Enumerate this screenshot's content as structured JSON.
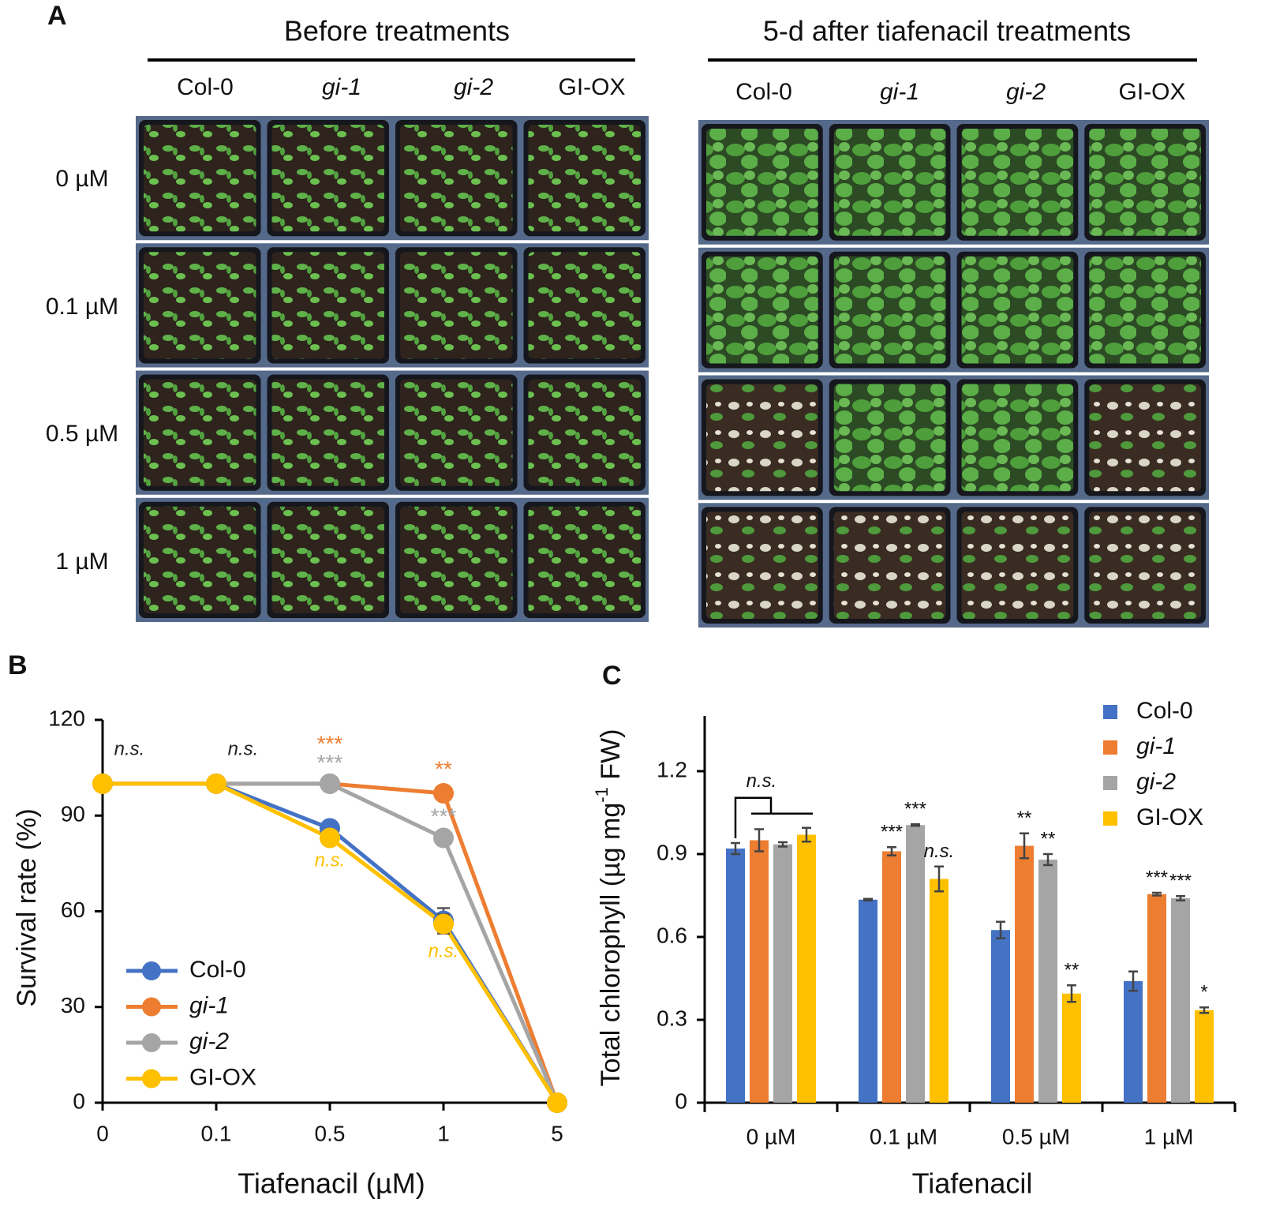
{
  "panel_a": {
    "label": "A",
    "rows": [
      "0 µM",
      "0.1 µM",
      "0.5 µM",
      "1 µM"
    ],
    "groups": [
      {
        "title": "Before treatments",
        "columns": [
          "Col-0",
          "gi-1",
          "gi-2",
          "GI-OX"
        ]
      },
      {
        "title": "5-d after tiafenacil treatments",
        "columns": [
          "Col-0",
          "gi-1",
          "gi-2",
          "GI-OX"
        ]
      }
    ]
  },
  "chart_data": [
    {
      "type": "line",
      "panel_label": "B",
      "xlabel": "Tiafenacil (µM)",
      "ylabel": "Survival rate (%)",
      "categories": [
        "0",
        "0.1",
        "0.5",
        "1",
        "5"
      ],
      "ylim": [
        0,
        120
      ],
      "yticks": [
        0,
        30,
        60,
        90,
        120
      ],
      "legend": "lower-left",
      "series": [
        {
          "name": "Col-0",
          "color": "#4472c4",
          "values": [
            100,
            100,
            86,
            57,
            0
          ],
          "errors": [
            null,
            null,
            null,
            4,
            null
          ]
        },
        {
          "name": "gi-1",
          "color": "#ed7d31",
          "values": [
            100,
            100,
            100,
            97,
            0
          ]
        },
        {
          "name": "gi-2",
          "color": "#a5a5a5",
          "values": [
            100,
            100,
            100,
            83,
            0
          ]
        },
        {
          "name": "GI-OX",
          "color": "#ffc000",
          "values": [
            100,
            100,
            83,
            56,
            0
          ],
          "errors": [
            null,
            null,
            null,
            3,
            null
          ]
        }
      ],
      "annotations": [
        {
          "text": "n.s.",
          "x": "0",
          "color": "#222222"
        },
        {
          "text": "n.s.",
          "x": "0.1",
          "color": "#222222"
        },
        {
          "text": "***",
          "x": "0.5",
          "color": "#ed7d31"
        },
        {
          "text": "***",
          "x": "0.5",
          "color": "#a5a5a5"
        },
        {
          "text": "n.s.",
          "x": "0.5",
          "color": "#ffc000"
        },
        {
          "text": "**",
          "x": "1",
          "color": "#ed7d31"
        },
        {
          "text": "***",
          "x": "1",
          "color": "#a5a5a5"
        },
        {
          "text": "n.s.",
          "x": "1",
          "color": "#ffc000"
        }
      ]
    },
    {
      "type": "bar",
      "panel_label": "C",
      "xlabel": "Tiafenacil",
      "ylabel": [
        "Total chlorophyll (µg mg",
        "-1",
        " FW)"
      ],
      "categories": [
        "0 µM",
        "0.1 µM",
        "0.5 µM",
        "1 µM"
      ],
      "ylim": [
        0,
        1.4
      ],
      "yticks": [
        0,
        0.3,
        0.6,
        0.9,
        1.2
      ],
      "legend": "upper-right",
      "series": [
        {
          "name": "Col-0",
          "color": "#4472c4",
          "values": [
            0.92,
            0.735,
            0.625,
            0.44
          ],
          "errors": [
            0.02,
            0.003,
            0.03,
            0.035
          ]
        },
        {
          "name": "gi-1",
          "color": "#ed7d31",
          "values": [
            0.95,
            0.91,
            0.93,
            0.755
          ],
          "errors": [
            0.04,
            0.015,
            0.045,
            0.005
          ]
        },
        {
          "name": "gi-2",
          "color": "#a5a5a5",
          "values": [
            0.935,
            1.005,
            0.88,
            0.74
          ],
          "errors": [
            0.008,
            0.003,
            0.02,
            0.008
          ]
        },
        {
          "name": "GI-OX",
          "color": "#ffc000",
          "values": [
            0.97,
            0.81,
            0.395,
            0.335
          ],
          "errors": [
            0.025,
            0.045,
            0.03,
            0.01
          ]
        }
      ],
      "annotations": [
        {
          "text": "n.s.",
          "category": "0 µM"
        },
        {
          "text": "***",
          "category": "0.1 µM",
          "series": "gi-1"
        },
        {
          "text": "***",
          "category": "0.1 µM",
          "series": "gi-2"
        },
        {
          "text": "n.s.",
          "category": "0.1 µM",
          "series": "GI-OX"
        },
        {
          "text": "**",
          "category": "0.5 µM",
          "series": "gi-1"
        },
        {
          "text": "**",
          "category": "0.5 µM",
          "series": "gi-2"
        },
        {
          "text": "**",
          "category": "0.5 µM",
          "series": "GI-OX"
        },
        {
          "text": "***",
          "category": "1 µM",
          "series": "gi-1"
        },
        {
          "text": "***",
          "category": "1 µM",
          "series": "gi-2"
        },
        {
          "text": "*",
          "category": "1 µM",
          "series": "GI-OX"
        }
      ]
    }
  ]
}
